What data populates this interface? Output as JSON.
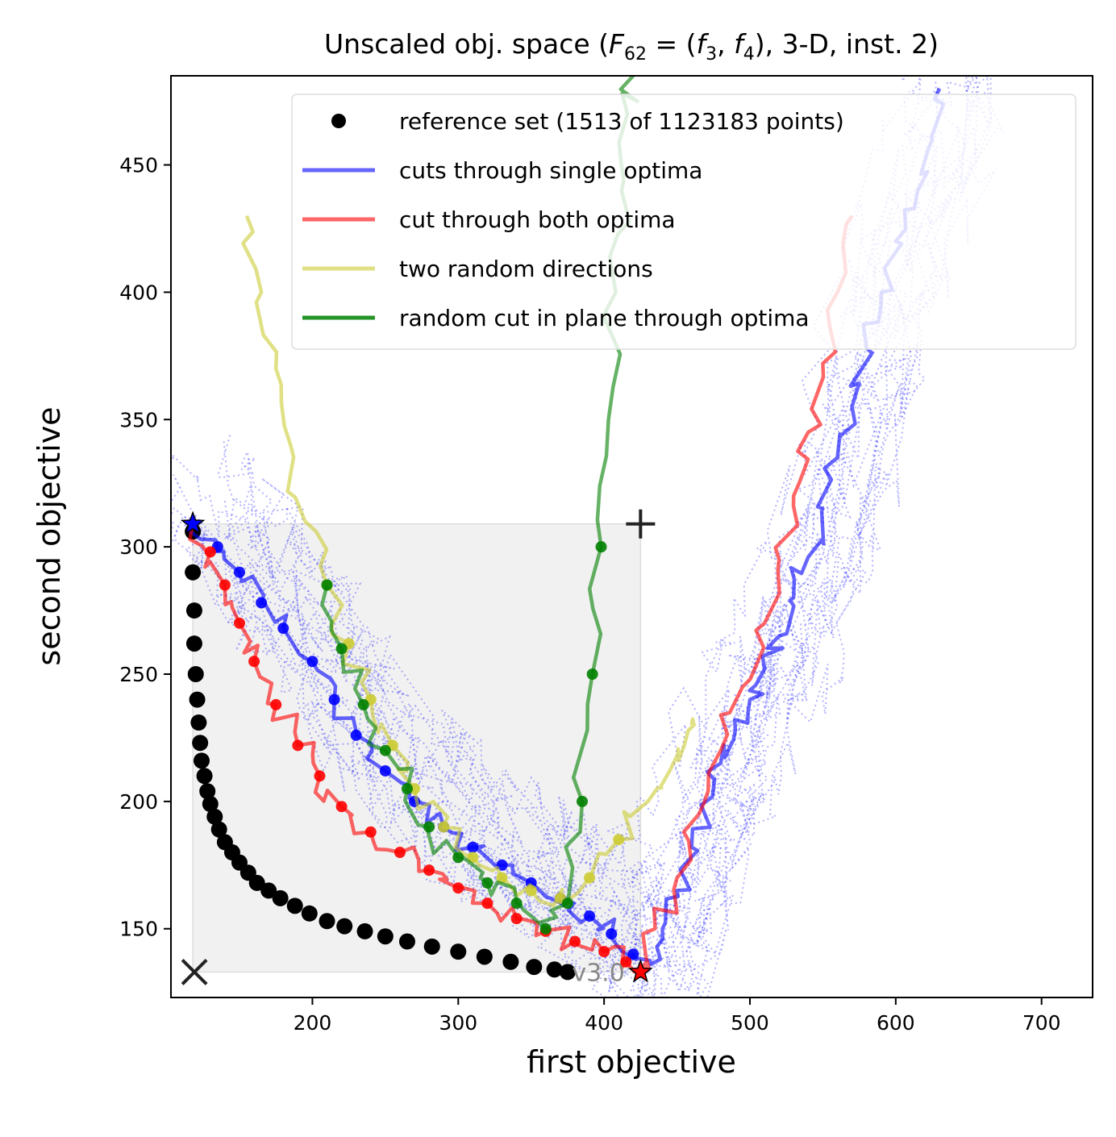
{
  "chart_data": {
    "type": "line",
    "title": "Unscaled obj. space (F62 = (f3, f4), 3-D, inst. 2)",
    "title_parts": {
      "prefix": "Unscaled obj. space (",
      "F": "F",
      "F_sub": "62",
      "eq": " = (",
      "f1": "f",
      "f1_sub": "3",
      "comma": ", ",
      "f2": "f",
      "f2_sub": "4",
      "suffix": "), 3-D, inst. 2)"
    },
    "xlabel": "first objective",
    "ylabel": "second objective",
    "xlim": [
      103,
      735
    ],
    "ylim": [
      123,
      485
    ],
    "xticks": [
      200,
      300,
      400,
      500,
      600,
      700
    ],
    "yticks": [
      150,
      200,
      250,
      300,
      350,
      400,
      450
    ],
    "grid": false,
    "legend_placement": "top-right",
    "version_label": "v3.0",
    "ideal_point": [
      118,
      133
    ],
    "nadir_point": [
      425,
      309
    ],
    "optimum_1": [
      118,
      309
    ],
    "optimum_2": [
      425,
      133
    ],
    "series": [
      {
        "name": "reference set (1513 of 1123183 points)",
        "kind": "reference",
        "color": "#000000",
        "x": [
          118,
          118,
          119,
          119,
          120,
          121,
          122,
          123,
          124,
          126,
          128,
          130,
          133,
          136,
          140,
          145,
          150,
          156,
          162,
          170,
          178,
          188,
          198,
          210,
          222,
          236,
          250,
          265,
          282,
          300,
          318,
          336,
          352,
          366,
          375
        ],
        "y": [
          306,
          290,
          275,
          262,
          250,
          240,
          231,
          223,
          216,
          210,
          204,
          199,
          194,
          189,
          184,
          180,
          176,
          172,
          168,
          165,
          162,
          159,
          156,
          153,
          151,
          149,
          147,
          145,
          143,
          141,
          139,
          137,
          135,
          134,
          133
        ]
      },
      {
        "name": "cuts through single optima",
        "kind": "line",
        "color": "#0000ff",
        "x": [
          118,
          135,
          150,
          165,
          180,
          200,
          215,
          230,
          250,
          270,
          290,
          310,
          330,
          350,
          370,
          390,
          405,
          420,
          432,
          440,
          450,
          460,
          470,
          480,
          490,
          500,
          510,
          520,
          530,
          540,
          550,
          560,
          570,
          580,
          590,
          600,
          615,
          625,
          630
        ],
        "y": [
          309,
          300,
          290,
          278,
          268,
          255,
          240,
          226,
          212,
          200,
          190,
          182,
          175,
          168,
          162,
          155,
          148,
          140,
          136,
          150,
          165,
          182,
          200,
          215,
          228,
          240,
          252,
          265,
          280,
          296,
          315,
          335,
          355,
          378,
          400,
          420,
          440,
          460,
          480
        ]
      },
      {
        "name": "cut through both optima",
        "kind": "line",
        "color": "#ff0000",
        "x": [
          118,
          130,
          140,
          150,
          160,
          175,
          190,
          205,
          220,
          240,
          260,
          280,
          300,
          320,
          340,
          360,
          380,
          400,
          415,
          425,
          435,
          450,
          465,
          480,
          495,
          510,
          520,
          530,
          540,
          550,
          560,
          570
        ],
        "y": [
          309,
          298,
          285,
          270,
          255,
          238,
          222,
          210,
          198,
          188,
          180,
          173,
          166,
          160,
          154,
          149,
          145,
          141,
          137,
          133,
          150,
          170,
          195,
          220,
          245,
          270,
          295,
          320,
          345,
          372,
          400,
          430
        ]
      },
      {
        "name": "two random directions",
        "kind": "line",
        "color": "#cccc33",
        "x": [
          155,
          165,
          175,
          185,
          195,
          210,
          225,
          240,
          255,
          270,
          290,
          310,
          330,
          350,
          370,
          390,
          410,
          430,
          445,
          455,
          460
        ],
        "y": [
          430,
          400,
          370,
          340,
          310,
          285,
          262,
          240,
          222,
          205,
          190,
          178,
          170,
          165,
          162,
          170,
          185,
          200,
          212,
          222,
          230
        ]
      },
      {
        "name": "random cut in plane through optima",
        "kind": "line",
        "color": "#008000",
        "x": [
          210,
          220,
          235,
          250,
          265,
          280,
          300,
          320,
          340,
          360,
          375,
          385,
          392,
          398,
          403,
          408,
          412,
          416,
          420
        ],
        "y": [
          285,
          260,
          238,
          220,
          205,
          190,
          178,
          168,
          160,
          150,
          160,
          200,
          250,
          300,
          350,
          400,
          440,
          470,
          485
        ]
      }
    ]
  }
}
